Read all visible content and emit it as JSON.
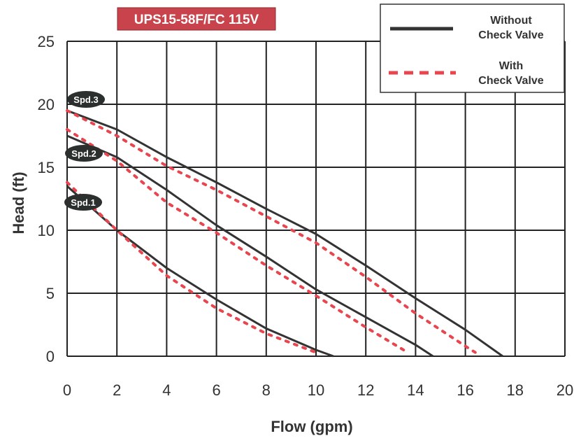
{
  "badge": {
    "label": "UPS15-58F/FC 115V",
    "color": "#c8434b"
  },
  "legend": {
    "without": {
      "line1": "Without",
      "line2": "Check Valve"
    },
    "with": {
      "line1": "With",
      "line2": "Check Valve"
    }
  },
  "colors": {
    "solid": "#333333",
    "dotted": "#e8454f",
    "grid": "#222222"
  },
  "chart_data": {
    "type": "line",
    "xlabel": "Flow (gpm)",
    "ylabel": "Head (ft)",
    "xlim": [
      0,
      20
    ],
    "ylim": [
      0,
      25
    ],
    "xticks": [
      0,
      2,
      4,
      6,
      8,
      10,
      12,
      14,
      16,
      18,
      20
    ],
    "yticks": [
      0,
      5,
      10,
      15,
      20,
      25
    ],
    "grid": true,
    "legend_position": "top-right",
    "speed_labels": [
      "Spd.3",
      "Spd.2",
      "Spd.1"
    ],
    "series": [
      {
        "name": "Without Check Valve",
        "speed": "Spd.3",
        "style": "solid",
        "x": [
          0,
          2,
          4,
          6,
          8,
          10,
          12,
          14,
          16,
          17.5
        ],
        "y": [
          19.5,
          18,
          15.8,
          13.8,
          11.7,
          9.7,
          7.2,
          4.6,
          2.1,
          0
        ]
      },
      {
        "name": "Without Check Valve",
        "speed": "Spd.2",
        "style": "solid",
        "x": [
          0,
          2,
          4,
          6,
          8,
          10,
          12,
          14,
          14.7
        ],
        "y": [
          17.5,
          15.8,
          13.2,
          10.4,
          7.9,
          5.3,
          3.1,
          0.9,
          0
        ]
      },
      {
        "name": "Without Check Valve",
        "speed": "Spd.1",
        "style": "solid",
        "x": [
          0,
          2,
          4,
          6,
          8,
          10,
          10.7
        ],
        "y": [
          13.5,
          10,
          7,
          4.5,
          2.2,
          0.5,
          0
        ]
      },
      {
        "name": "With Check Valve",
        "speed": "Spd.3",
        "style": "dotted",
        "x": [
          0,
          2,
          4,
          6,
          8,
          10,
          12,
          14,
          16,
          16.4
        ],
        "y": [
          19.5,
          17.5,
          15.1,
          13.2,
          11.1,
          9,
          6.3,
          3.4,
          0.8,
          0.3
        ]
      },
      {
        "name": "With Check Valve",
        "speed": "Spd.2",
        "style": "dotted",
        "x": [
          0,
          2,
          4,
          6,
          8,
          10,
          12,
          13.6
        ],
        "y": [
          18,
          15.5,
          12.2,
          9.8,
          7.2,
          4.8,
          2.3,
          0.4
        ]
      },
      {
        "name": "With Check Valve",
        "speed": "Spd.1",
        "style": "dotted",
        "x": [
          0,
          2,
          4,
          6,
          8,
          10
        ],
        "y": [
          13.8,
          10,
          6.4,
          3.8,
          1.8,
          0.3
        ]
      }
    ]
  }
}
